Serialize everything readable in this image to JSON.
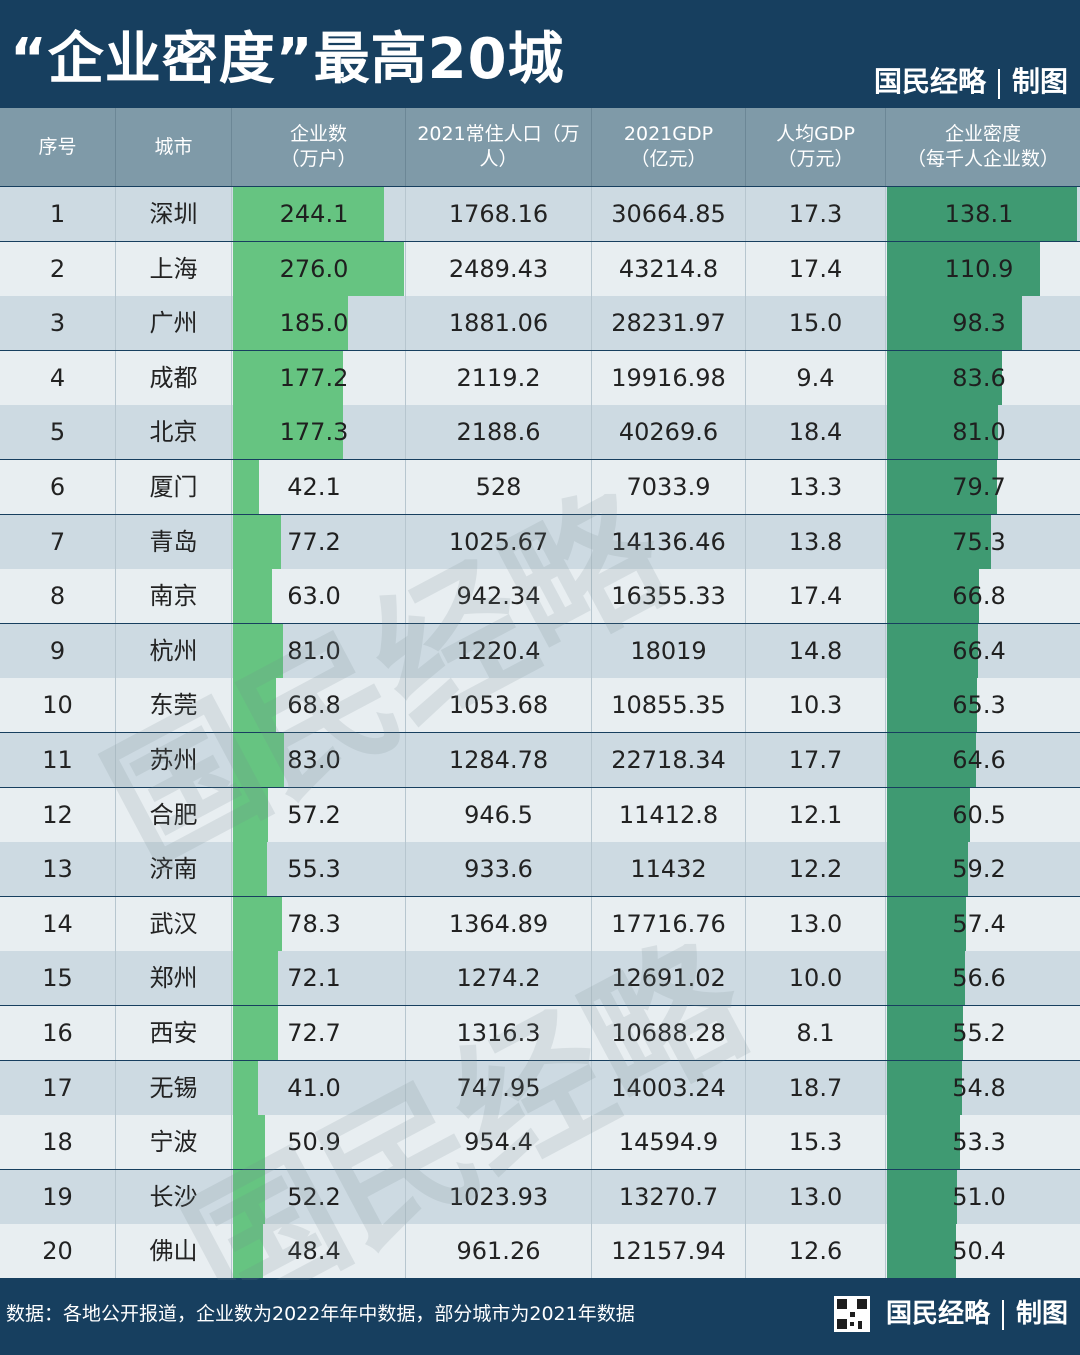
{
  "title": "“企业密度”最高20城",
  "brand": {
    "name": "国民经略",
    "suffix": "制图"
  },
  "watermark": "国民经略",
  "headers": {
    "rank": "序号",
    "city": "城市",
    "enterprises": "企业数\n（万户）",
    "population": "2021常住人口（万人）",
    "gdp": "2021GDP\n（亿元）",
    "gdp_per_capita": "人均GDP\n（万元）",
    "density": "企业密度\n（每千人企业数）"
  },
  "rows": [
    {
      "rank": "1",
      "city": "深圳",
      "enterprises": "244.1",
      "population": "1768.16",
      "gdp": "30664.85",
      "gdp_per_capita": "17.3",
      "density": "138.1"
    },
    {
      "rank": "2",
      "city": "上海",
      "enterprises": "276.0",
      "population": "2489.43",
      "gdp": "43214.8",
      "gdp_per_capita": "17.4",
      "density": "110.9"
    },
    {
      "rank": "3",
      "city": "广州",
      "enterprises": "185.0",
      "population": "1881.06",
      "gdp": "28231.97",
      "gdp_per_capita": "15.0",
      "density": "98.3"
    },
    {
      "rank": "4",
      "city": "成都",
      "enterprises": "177.2",
      "population": "2119.2",
      "gdp": "19916.98",
      "gdp_per_capita": "9.4",
      "density": "83.6"
    },
    {
      "rank": "5",
      "city": "北京",
      "enterprises": "177.3",
      "population": "2188.6",
      "gdp": "40269.6",
      "gdp_per_capita": "18.4",
      "density": "81.0"
    },
    {
      "rank": "6",
      "city": "厦门",
      "enterprises": "42.1",
      "population": "528",
      "gdp": "7033.9",
      "gdp_per_capita": "13.3",
      "density": "79.7"
    },
    {
      "rank": "7",
      "city": "青岛",
      "enterprises": "77.2",
      "population": "1025.67",
      "gdp": "14136.46",
      "gdp_per_capita": "13.8",
      "density": "75.3"
    },
    {
      "rank": "8",
      "city": "南京",
      "enterprises": "63.0",
      "population": "942.34",
      "gdp": "16355.33",
      "gdp_per_capita": "17.4",
      "density": "66.8"
    },
    {
      "rank": "9",
      "city": "杭州",
      "enterprises": "81.0",
      "population": "1220.4",
      "gdp": "18019",
      "gdp_per_capita": "14.8",
      "density": "66.4"
    },
    {
      "rank": "10",
      "city": "东莞",
      "enterprises": "68.8",
      "population": "1053.68",
      "gdp": "10855.35",
      "gdp_per_capita": "10.3",
      "density": "65.3"
    },
    {
      "rank": "11",
      "city": "苏州",
      "enterprises": "83.0",
      "population": "1284.78",
      "gdp": "22718.34",
      "gdp_per_capita": "17.7",
      "density": "64.6"
    },
    {
      "rank": "12",
      "city": "合肥",
      "enterprises": "57.2",
      "population": "946.5",
      "gdp": "11412.8",
      "gdp_per_capita": "12.1",
      "density": "60.5"
    },
    {
      "rank": "13",
      "city": "济南",
      "enterprises": "55.3",
      "population": "933.6",
      "gdp": "11432",
      "gdp_per_capita": "12.2",
      "density": "59.2"
    },
    {
      "rank": "14",
      "city": "武汉",
      "enterprises": "78.3",
      "population": "1364.89",
      "gdp": "17716.76",
      "gdp_per_capita": "13.0",
      "density": "57.4"
    },
    {
      "rank": "15",
      "city": "郑州",
      "enterprises": "72.1",
      "population": "1274.2",
      "gdp": "12691.02",
      "gdp_per_capita": "10.0",
      "density": "56.6"
    },
    {
      "rank": "16",
      "city": "西安",
      "enterprises": "72.7",
      "population": "1316.3",
      "gdp": "10688.28",
      "gdp_per_capita": "8.1",
      "density": "55.2"
    },
    {
      "rank": "17",
      "city": "无锡",
      "enterprises": "41.0",
      "population": "747.95",
      "gdp": "14003.24",
      "gdp_per_capita": "18.7",
      "density": "54.8"
    },
    {
      "rank": "18",
      "city": "宁波",
      "enterprises": "50.9",
      "population": "954.4",
      "gdp": "14594.9",
      "gdp_per_capita": "15.3",
      "density": "53.3"
    },
    {
      "rank": "19",
      "city": "长沙",
      "enterprises": "52.2",
      "population": "1023.93",
      "gdp": "13270.7",
      "gdp_per_capita": "13.0",
      "density": "51.0"
    },
    {
      "rank": "20",
      "city": "佛山",
      "enterprises": "48.4",
      "population": "961.26",
      "gdp": "12157.94",
      "gdp_per_capita": "12.6",
      "density": "50.4"
    }
  ],
  "footer": {
    "source": "数据：各地公开报道，企业数为2022年年中数据，部分城市为2021年数据",
    "brand": "国民经略",
    "suffix": "制图"
  },
  "colors": {
    "background": "#173f5f",
    "header_row": "#7f9aa8",
    "row_odd": "#cddae2",
    "row_even": "#e8eef1",
    "enterprise_bar": "#66c481",
    "density_bar": "#3f9a72"
  }
}
